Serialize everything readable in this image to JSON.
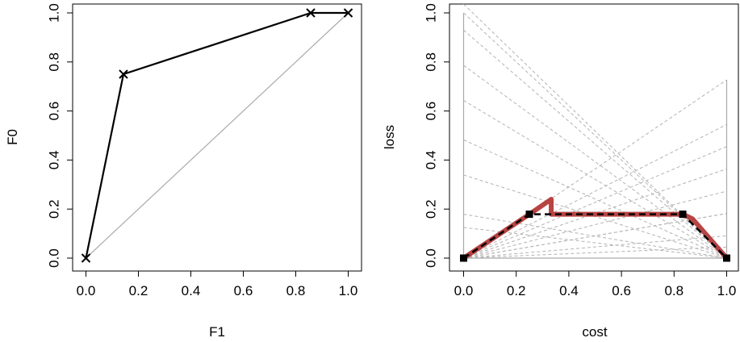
{
  "chart_data": [
    {
      "type": "line",
      "title": "",
      "xlabel": "F1",
      "ylabel": "F0",
      "xlim": [
        0,
        1
      ],
      "ylim": [
        0,
        1
      ],
      "xticks": [
        "0.0",
        "0.2",
        "0.4",
        "0.6",
        "0.8",
        "1.0"
      ],
      "yticks": [
        "0.0",
        "0.2",
        "0.4",
        "0.6",
        "0.8",
        "1.0"
      ],
      "grid": false,
      "series": [
        {
          "x": [
            0,
            0.143,
            0.857,
            1.0
          ],
          "y": [
            0,
            0.75,
            1.0,
            1.0
          ],
          "color": "#000000",
          "marker": "x"
        }
      ],
      "diagonal": {
        "x": [
          0,
          1
        ],
        "y": [
          0,
          1
        ],
        "color": "#aaaaaa"
      }
    },
    {
      "type": "line",
      "title": "",
      "xlabel": "cost",
      "ylabel": "loss",
      "xlim": [
        0,
        1
      ],
      "ylim": [
        0,
        1
      ],
      "xticks": [
        "0.0",
        "0.2",
        "0.4",
        "0.6",
        "0.8",
        "1.0"
      ],
      "yticks": [
        "0.0",
        "0.2",
        "0.4",
        "0.6",
        "0.8",
        "1.0"
      ],
      "grid": false,
      "cost_lines": [
        {
          "y0": 0.0,
          "y1": 0.0
        },
        {
          "y0": 1.0,
          "y1": 0.0
        },
        {
          "y0": 0.0,
          "y1": 0.727
        },
        {
          "y0": 0.0,
          "y1": 0.545
        },
        {
          "y0": 0.0,
          "y1": 0.455
        },
        {
          "y0": 0.0,
          "y1": 0.364
        },
        {
          "y0": 0.0,
          "y1": 0.273
        },
        {
          "y0": 0.0,
          "y1": 0.182
        },
        {
          "y0": 0.0,
          "y1": 0.091
        },
        {
          "y0": 0.0,
          "y1": 0.045
        },
        {
          "y0": 1.036,
          "y1": 0.0
        },
        {
          "y0": 0.93,
          "y1": 0.0
        },
        {
          "y0": 0.786,
          "y1": 0.0
        },
        {
          "y0": 0.643,
          "y1": 0.0
        },
        {
          "y0": 0.482,
          "y1": 0.0
        },
        {
          "y0": 0.339,
          "y1": 0.0
        },
        {
          "y0": 0.179,
          "y1": 0.0
        },
        {
          "y0": 0.125,
          "y1": 0.0
        },
        {
          "y0": 0.0,
          "y1": 0.182
        }
      ],
      "cost_line_color": "#b3b3b3",
      "red_curve": {
        "x": [
          0,
          0.25,
          0.333,
          0.333,
          0.833,
          0.87,
          1.0
        ],
        "y": [
          0,
          0.179,
          0.24,
          0.179,
          0.179,
          0.16,
          0
        ],
        "color": "#b03030"
      },
      "lower_envelope": {
        "x": [
          0,
          0.25,
          0.833,
          1.0
        ],
        "y": [
          0,
          0.179,
          0.179,
          0
        ],
        "color": "#000000",
        "dash": "dashed",
        "marker": "square"
      },
      "vertical_lines": [
        {
          "x": 0.0,
          "y0": 0.0,
          "y1": 1.0
        },
        {
          "x": 1.0,
          "y0": 0.0,
          "y1": 0.727
        }
      ]
    }
  ]
}
